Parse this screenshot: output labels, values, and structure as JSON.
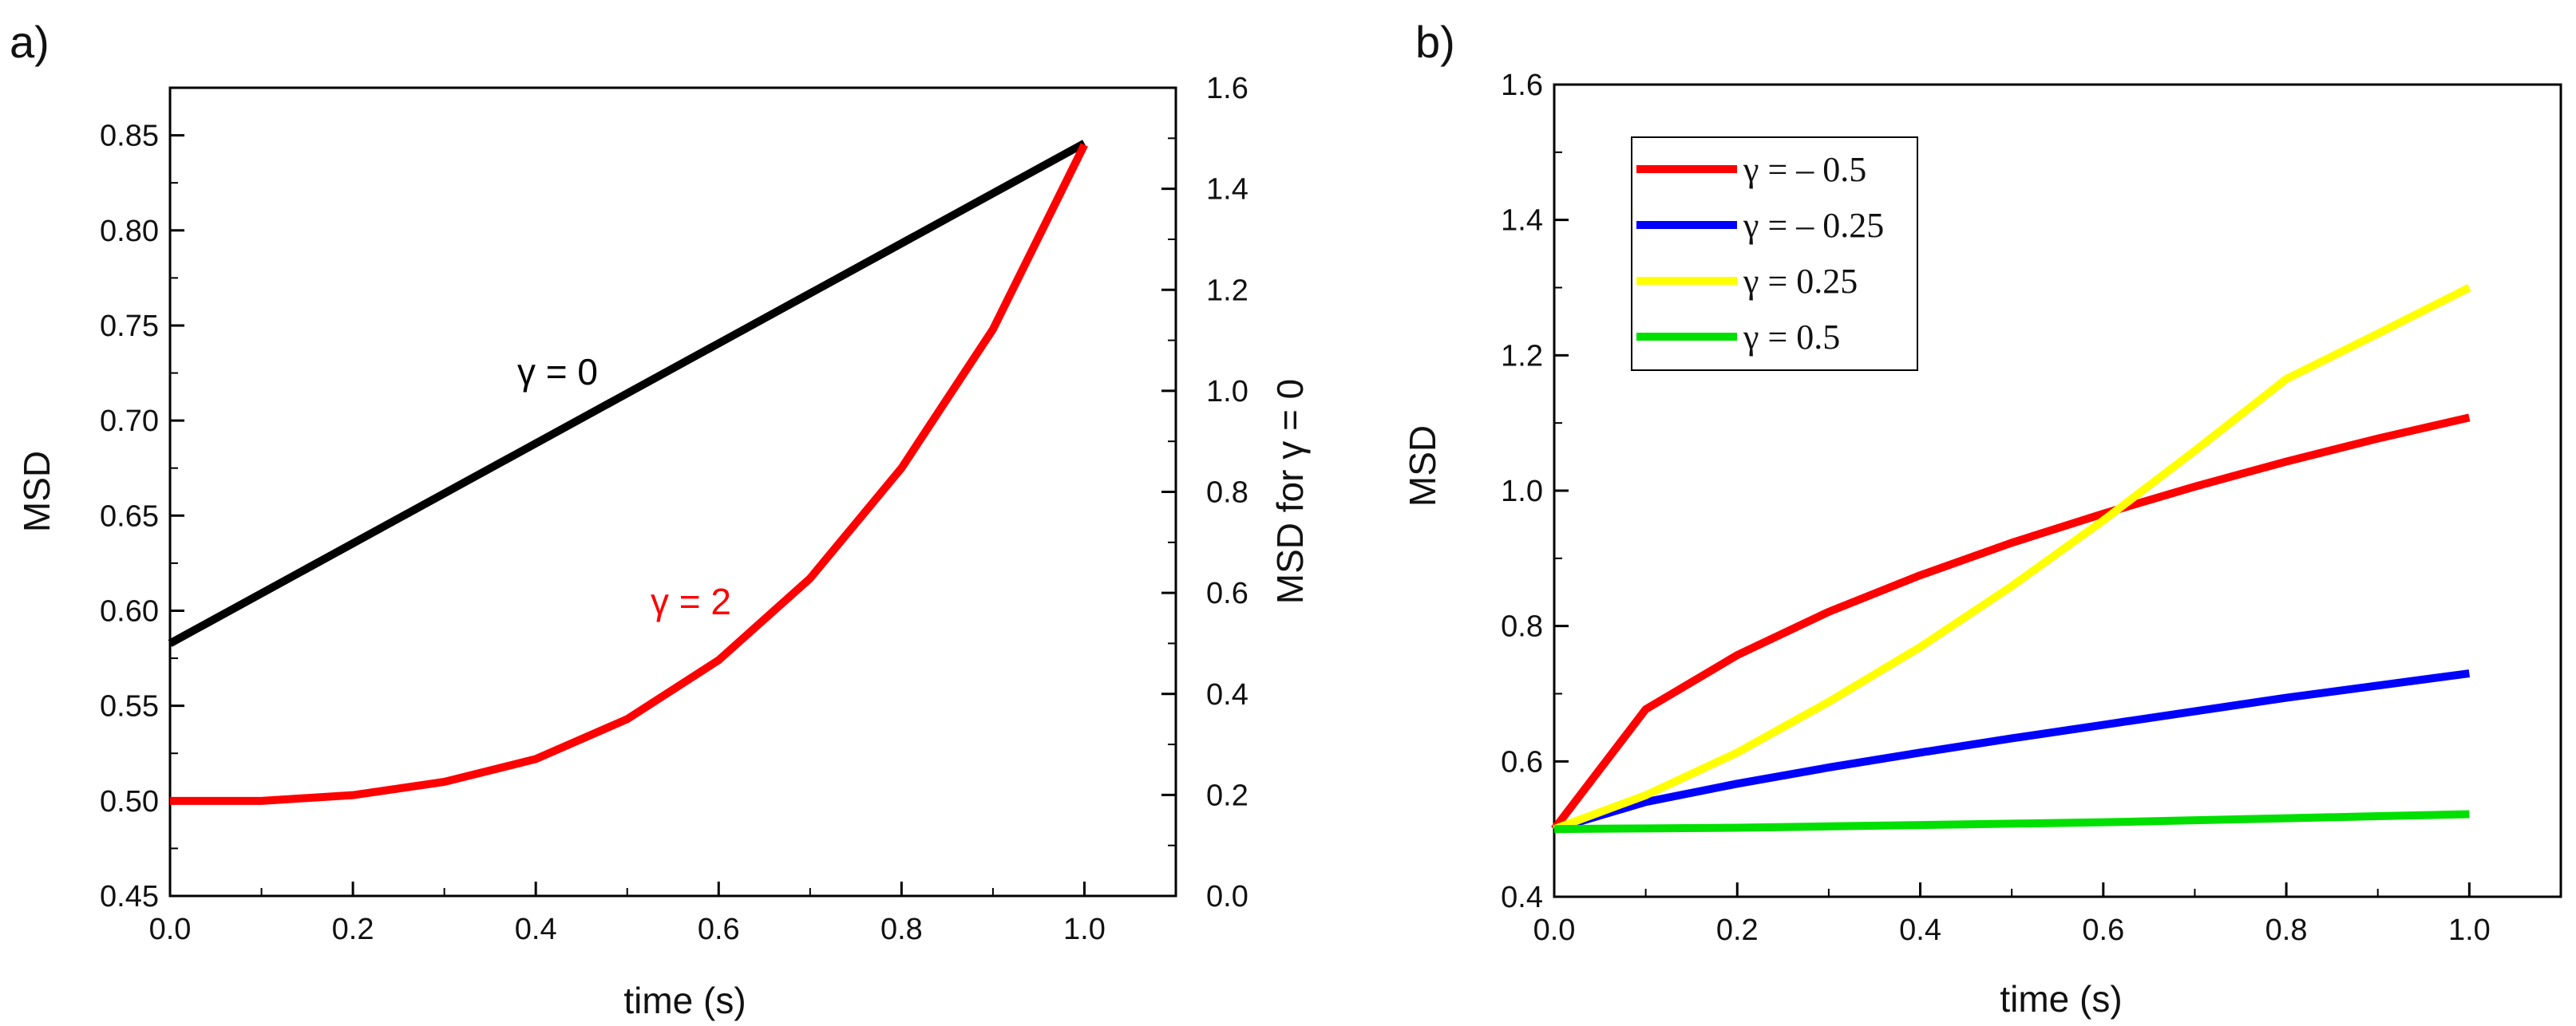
{
  "chart_data": [
    {
      "panel": "a)",
      "type": "line",
      "xlabel": "time (s)",
      "ylabel": "MSD",
      "y2label": "MSD for γ = 0",
      "xlim": [
        0.0,
        1.1
      ],
      "ylim": [
        0.45,
        0.875
      ],
      "y2lim": [
        0.0,
        1.6
      ],
      "xticks": [
        "0.0",
        "0.2",
        "0.4",
        "0.6",
        "0.8",
        "1.0"
      ],
      "yticks": [
        "0.45",
        "0.50",
        "0.55",
        "0.60",
        "0.65",
        "0.70",
        "0.75",
        "0.80",
        "0.85"
      ],
      "y2ticks": [
        "0.0",
        "0.2",
        "0.4",
        "0.6",
        "0.8",
        "1.0",
        "1.2",
        "1.4",
        "1.6"
      ],
      "series": [
        {
          "name": "γ = 0",
          "axis": "right",
          "color": "#000000",
          "x": [
            0.0,
            1.0
          ],
          "values": [
            0.5,
            1.49
          ]
        },
        {
          "name": "γ = 2",
          "axis": "left",
          "color": "#ff0000",
          "x": [
            0.0,
            0.1,
            0.2,
            0.3,
            0.4,
            0.5,
            0.6,
            0.7,
            0.8,
            0.9,
            1.0
          ],
          "values": [
            0.5,
            0.5,
            0.503,
            0.51,
            0.522,
            0.543,
            0.574,
            0.617,
            0.675,
            0.748,
            0.845
          ]
        }
      ],
      "annotations": [
        {
          "text": "γ = 0",
          "color": "#000000"
        },
        {
          "text": "γ = 2",
          "color": "#ff0000"
        }
      ]
    },
    {
      "panel": "b)",
      "type": "line",
      "xlabel": "time (s)",
      "ylabel": "MSD",
      "xlim": [
        0.0,
        1.1
      ],
      "ylim": [
        0.4,
        1.6
      ],
      "xticks": [
        "0.0",
        "0.2",
        "0.4",
        "0.6",
        "0.8",
        "1.0"
      ],
      "yticks": [
        "0.4",
        "0.6",
        "0.8",
        "1.0",
        "1.2",
        "1.4",
        "1.6"
      ],
      "legend_position": "top-left",
      "series": [
        {
          "name": "γ = – 0.5",
          "color": "#ff0000",
          "x": [
            0.0,
            0.1,
            0.2,
            0.3,
            0.4,
            0.5,
            0.6,
            0.7,
            0.8,
            0.9,
            1.0
          ],
          "values": [
            0.5,
            0.677,
            0.757,
            0.821,
            0.875,
            0.923,
            0.966,
            1.006,
            1.043,
            1.077,
            1.108
          ]
        },
        {
          "name": "γ = – 0.25",
          "color": "#0000ff",
          "x": [
            0.0,
            0.1,
            0.2,
            0.3,
            0.4,
            0.5,
            0.6,
            0.7,
            0.8,
            0.9,
            1.0
          ],
          "values": [
            0.5,
            0.54,
            0.567,
            0.591,
            0.613,
            0.634,
            0.654,
            0.674,
            0.694,
            0.712,
            0.73
          ]
        },
        {
          "name": "γ = 0.25",
          "color": "#ffff00",
          "x": [
            0.0,
            0.1,
            0.2,
            0.3,
            0.4,
            0.5,
            0.6,
            0.7,
            0.8,
            0.9,
            1.0
          ],
          "values": [
            0.5,
            0.55,
            0.613,
            0.688,
            0.769,
            0.859,
            0.956,
            1.059,
            1.165,
            1.232,
            1.3
          ]
        },
        {
          "name": "γ = 0.5",
          "color": "#00e000",
          "x": [
            0.0,
            0.1,
            0.2,
            0.3,
            0.4,
            0.5,
            0.6,
            0.7,
            0.8,
            0.9,
            1.0
          ],
          "values": [
            0.5,
            0.501,
            0.502,
            0.504,
            0.506,
            0.508,
            0.51,
            0.513,
            0.516,
            0.519,
            0.522
          ]
        }
      ]
    }
  ]
}
